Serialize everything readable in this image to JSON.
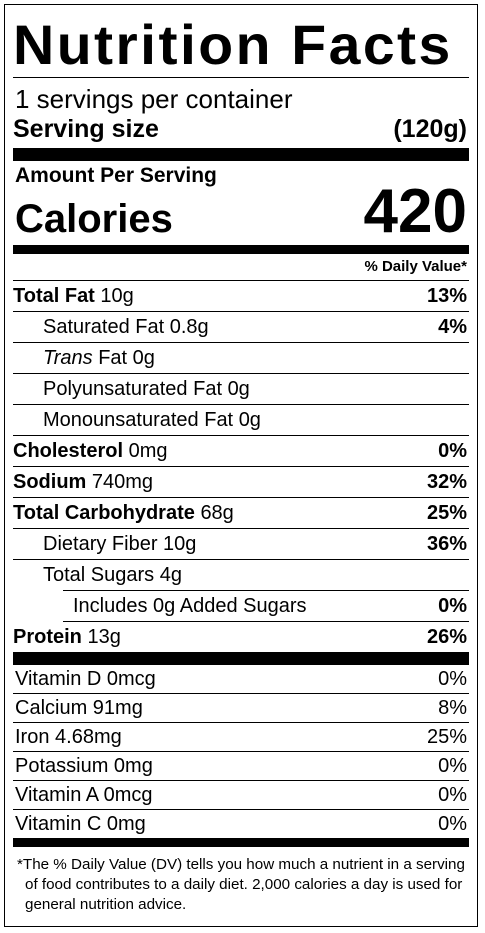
{
  "title": "Nutrition Facts",
  "servings_per_container": "1 servings per container",
  "serving_size": {
    "label": "Serving size",
    "value": "(120g)"
  },
  "amount_per_serving": "Amount Per Serving",
  "calories": {
    "label": "Calories",
    "value": "420"
  },
  "daily_value_header": "% Daily Value*",
  "nutrients": [
    {
      "label": "Total Fat",
      "amount": "10g",
      "dv": "13%"
    },
    {
      "label": "Saturated Fat",
      "amount": "0.8g",
      "dv": "4%"
    },
    {
      "label_italic": "Trans",
      "label": "Fat",
      "amount": "0g",
      "dv": ""
    },
    {
      "label": "Polyunsaturated Fat",
      "amount": "0g",
      "dv": ""
    },
    {
      "label": "Monounsaturated Fat",
      "amount": "0g",
      "dv": ""
    },
    {
      "label": "Cholesterol",
      "amount": "0mg",
      "dv": "0%"
    },
    {
      "label": "Sodium",
      "amount": "740mg",
      "dv": "32%"
    },
    {
      "label": "Total Carbohydrate",
      "amount": "68g",
      "dv": "25%"
    },
    {
      "label": "Dietary Fiber",
      "amount": "10g",
      "dv": "36%"
    },
    {
      "label": "Total Sugars",
      "amount": "4g",
      "dv": ""
    },
    {
      "label": "Includes 0g Added Sugars",
      "amount": "",
      "dv": "0%"
    },
    {
      "label": "Protein",
      "amount": "13g",
      "dv": "26%"
    }
  ],
  "vitamins": [
    {
      "label": "Vitamin D 0mcg",
      "dv": "0%"
    },
    {
      "label": "Calcium 91mg",
      "dv": "8%"
    },
    {
      "label": "Iron 4.68mg",
      "dv": "25%"
    },
    {
      "label": "Potassium 0mg",
      "dv": "0%"
    },
    {
      "label": "Vitamin A 0mcg",
      "dv": "0%"
    },
    {
      "label": "Vitamin C 0mg",
      "dv": "0%"
    }
  ],
  "footnote": "*The % Daily Value (DV) tells you how much a nutrient in a serving of food contributes to a daily diet. 2,000 calories a day is used for general nutrition advice."
}
